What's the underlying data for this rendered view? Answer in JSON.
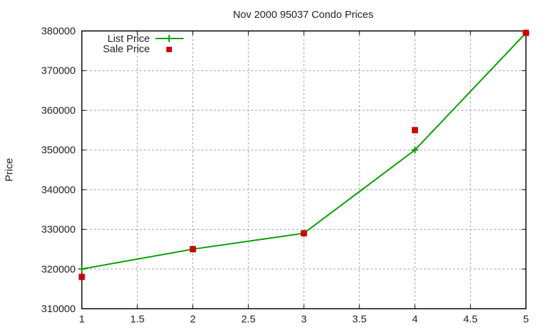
{
  "chart_data": {
    "type": "line",
    "title": "Nov 2000 95037 Condo Prices",
    "xlabel": "",
    "ylabel": "Price",
    "xlim": [
      1,
      5
    ],
    "ylim": [
      310000,
      380000
    ],
    "x_ticks": [
      "1",
      "1.5",
      "2",
      "2.5",
      "3",
      "3.5",
      "4",
      "4.5",
      "5"
    ],
    "y_ticks": [
      "310000",
      "320000",
      "330000",
      "340000",
      "350000",
      "360000",
      "370000",
      "380000"
    ],
    "grid": true,
    "legend_position": "top-left",
    "x": [
      1,
      2,
      3,
      4,
      5
    ],
    "series": [
      {
        "name": "List Price",
        "style": "linespoints",
        "marker": "plus",
        "color": "#00a000",
        "values": [
          320000,
          325000,
          329000,
          350000,
          379500
        ]
      },
      {
        "name": "Sale Price",
        "style": "points",
        "marker": "square",
        "color": "#cc0000",
        "values": [
          318000,
          325000,
          329000,
          355000,
          379500
        ]
      }
    ]
  }
}
